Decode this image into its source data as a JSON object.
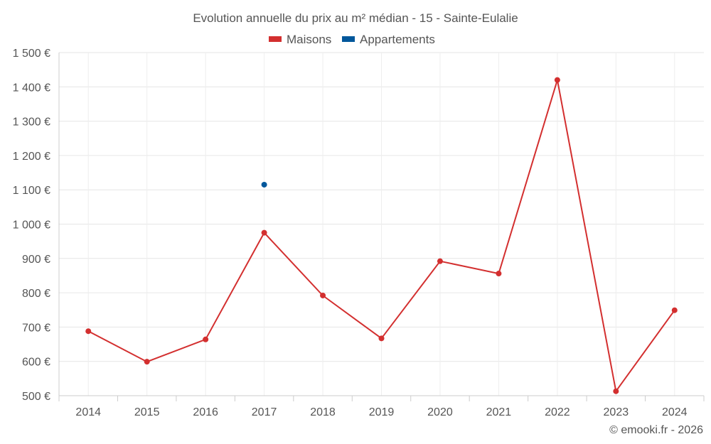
{
  "chart_data": {
    "type": "line",
    "title": "Evolution annuelle du prix au m² médian - 15 - Sainte-Eulalie",
    "credit": "© emooki.fr - 2026",
    "categories": [
      "2014",
      "2015",
      "2016",
      "2017",
      "2018",
      "2019",
      "2020",
      "2021",
      "2022",
      "2023",
      "2024"
    ],
    "ylim": [
      500,
      1500
    ],
    "yticks": [
      500,
      600,
      700,
      800,
      900,
      1000,
      1100,
      1200,
      1300,
      1400,
      1500
    ],
    "ytick_labels": [
      "500 €",
      "600 €",
      "700 €",
      "800 €",
      "900 €",
      "1 000 €",
      "1 100 €",
      "1 200 €",
      "1 300 €",
      "1 400 €",
      "1 500 €"
    ],
    "grid": true,
    "legend_position": "top-center",
    "series": [
      {
        "name": "Maisons",
        "color": "#d32f2f",
        "values": [
          688,
          599,
          664,
          975,
          792,
          667,
          892,
          856,
          1420,
          513,
          749
        ]
      },
      {
        "name": "Appartements",
        "color": "#01579b",
        "values": [
          null,
          null,
          null,
          1115,
          null,
          null,
          null,
          null,
          null,
          null,
          null
        ]
      }
    ]
  }
}
